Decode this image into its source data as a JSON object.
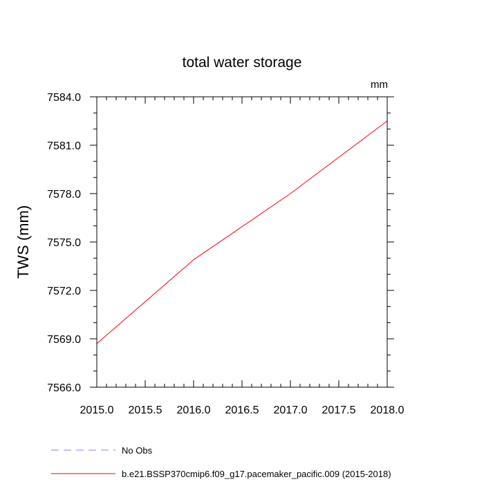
{
  "chart_data": {
    "type": "line",
    "title": "total water storage",
    "units_label": "mm",
    "xlabel": "",
    "ylabel": "TWS  (mm)",
    "xlim": [
      2015.0,
      2018.0
    ],
    "ylim": [
      7566.0,
      7584.0
    ],
    "xticks": [
      2015.0,
      2015.5,
      2016.0,
      2016.5,
      2017.0,
      2017.5,
      2018.0
    ],
    "xtick_labels": [
      "2015.0",
      "2015.5",
      "2016.0",
      "2016.5",
      "2017.0",
      "2017.5",
      "2018.0"
    ],
    "yticks": [
      7566.0,
      7569.0,
      7572.0,
      7575.0,
      7578.0,
      7581.0,
      7584.0
    ],
    "ytick_labels": [
      "7566.0",
      "7569.0",
      "7572.0",
      "7575.0",
      "7578.0",
      "7581.0",
      "7584.0"
    ],
    "grid": false,
    "series": [
      {
        "name": "b.e21.BSSP370cmip6.f09_g17.pacemaker_pacific.009 (2015-2018)",
        "color": "#ff0000",
        "style": "solid",
        "x": [
          2015.0,
          2016.0,
          2017.0,
          2018.0
        ],
        "y": [
          7568.7,
          7573.9,
          7578.0,
          7582.5
        ]
      }
    ],
    "legend": [
      {
        "label": "No Obs",
        "color": "#8080ff",
        "style": "dashed"
      },
      {
        "label": "b.e21.BSSP370cmip6.f09_g17.pacemaker_pacific.009 (2015-2018)",
        "color": "#ff0000",
        "style": "solid"
      }
    ],
    "legend_position": "bottom-left"
  }
}
